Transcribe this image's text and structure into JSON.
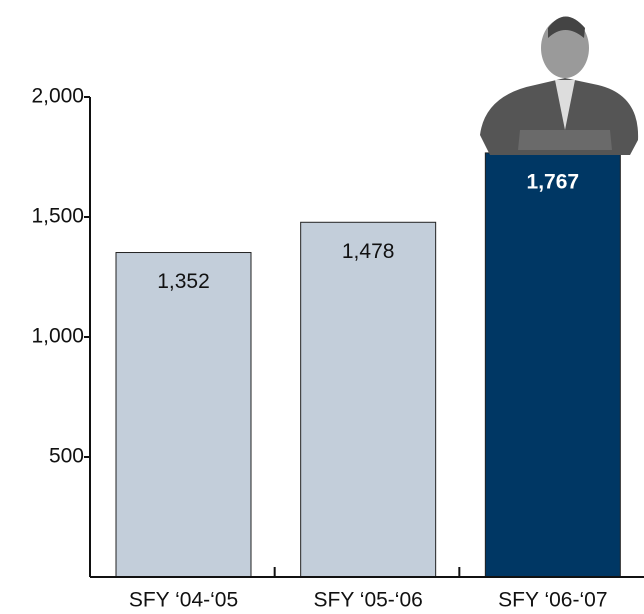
{
  "chart_data": {
    "type": "bar",
    "categories": [
      "SFY ‘04-‘05",
      "SFY ‘05-‘06",
      "SFY ‘06-‘07"
    ],
    "values": [
      1352,
      1478,
      1767
    ],
    "value_labels": [
      "1,352",
      "1,478",
      "1,767"
    ],
    "colors": [
      "#c3ceda",
      "#c3ceda",
      "#003764"
    ],
    "ylim": [
      0,
      2000
    ],
    "yticks": [
      {
        "value": 500,
        "label": "500"
      },
      {
        "value": 1000,
        "label": "1,000"
      },
      {
        "value": 1500,
        "label": "1,500"
      },
      {
        "value": 2000,
        "label": "2,000"
      }
    ]
  }
}
